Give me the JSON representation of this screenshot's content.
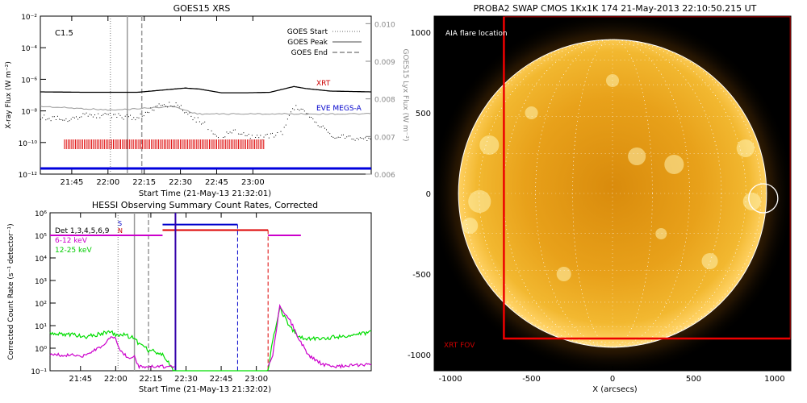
{
  "goes": {
    "title": "GOES15 XRS",
    "class_label": "C1.5",
    "ylabel": "X-ray Flux (W m⁻²)",
    "ylabel_right": "GOES15 Lyx Flux (W m⁻²)",
    "xlabel": "Start Time (21-May-13 21:32:01)",
    "legend": [
      "GOES Start",
      "GOES Peak",
      "GOES End"
    ],
    "instrument_labels": [
      "XRT",
      "EVE MEGS-A"
    ],
    "colors": {
      "xrt": "#cc0000",
      "eve": "#0000cc",
      "lyx": "#999999"
    }
  },
  "hessi": {
    "title": "HESSI Observing Summary Count Rates, Corrected",
    "ylabel": "Corrected Count Rate (s⁻¹ detector⁻¹)",
    "xlabel": "Start Time (21-May-13 21:32:02)",
    "legend": [
      {
        "text": "Det 1,3,4,5,6,9",
        "color": "#000000"
      },
      {
        "text": "6-12 keV",
        "color": "#cc00cc"
      },
      {
        "text": "12-25 keV",
        "color": "#00dd00"
      }
    ],
    "markers": [
      "S",
      "N"
    ]
  },
  "swap": {
    "title": "PROBA2 SWAP CMOS 1Kx1K 174 21-May-2013 22:10:50.215 UT",
    "flare_label": "AIA flare location",
    "fov_label": "XRT FOV",
    "xlabel": "X (arcsecs)"
  },
  "chart_data": [
    {
      "type": "line",
      "title": "GOES15 XRS",
      "x_ticks": [
        "21:45",
        "22:00",
        "22:15",
        "22:30",
        "22:45",
        "23:00"
      ],
      "x_range_minutes": [
        0,
        137
      ],
      "y_scale": "log",
      "y_ticks": [
        "10⁻¹²",
        "10⁻¹⁰",
        "10⁻⁸",
        "10⁻⁶",
        "10⁻⁴",
        "10⁻²"
      ],
      "y_ticks_right": [
        "0.006",
        "0.007",
        "0.008",
        "0.009",
        "0.010"
      ],
      "ylim": [
        1e-12,
        0.01
      ],
      "vlines": {
        "goes_start": "22:01",
        "goes_peak": "22:08",
        "goes_end": "22:14"
      },
      "series": [
        {
          "name": "XRT",
          "t": [
            0,
            20,
            40,
            60,
            66,
            75,
            85,
            95,
            105,
            110,
            120,
            137
          ],
          "y": [
            1.6e-07,
            1.5e-07,
            1.5e-07,
            2.8e-07,
            2.4e-07,
            1.4e-07,
            1.4e-07,
            1.5e-07,
            3.5e-07,
            2.6e-07,
            1.8e-07,
            1.6e-07
          ]
        },
        {
          "name": "EVE MEGS-A",
          "t": [
            0,
            137
          ],
          "y": [
            1e-12,
            1e-12
          ]
        }
      ],
      "xrs_short_t": [
        0,
        10,
        20,
        32,
        40,
        48,
        56,
        62,
        68,
        74,
        80,
        90,
        100,
        104,
        110,
        120,
        130
      ],
      "xrs_short_y": [
        4e-09,
        3e-09,
        6e-09,
        5e-09,
        4e-09,
        2e-08,
        3e-08,
        5e-09,
        1.5e-09,
        2.5e-10,
        5e-10,
        2e-10,
        4e-10,
        2e-08,
        1e-08,
        3e-10,
        2e-10
      ],
      "lyx_t": [
        0,
        30,
        55,
        65,
        137
      ],
      "lyx_y": [
        0.0078,
        0.0077,
        0.0078,
        0.0076,
        0.0076
      ],
      "eve_bar_minutes": [
        10,
        93
      ]
    },
    {
      "type": "line",
      "title": "HESSI Observing Summary Count Rates, Corrected",
      "x_ticks": [
        "21:45",
        "22:00",
        "22:15",
        "22:30",
        "22:45",
        "23:00"
      ],
      "y_scale": "log",
      "y_ticks": [
        "10⁻¹",
        "10⁰",
        "10¹",
        "10²",
        "10³",
        "10⁴",
        "10⁵",
        "10⁶"
      ],
      "ylim": [
        0.1,
        1000000.0
      ],
      "series": [
        {
          "name": "6-12 keV",
          "t": [
            0,
            6,
            14,
            22,
            26,
            28,
            30,
            32,
            34,
            36,
            38,
            40,
            42,
            44,
            46,
            48,
            50,
            53,
            93,
            95,
            98,
            102,
            106,
            110,
            116,
            120,
            137
          ],
          "y": [
            0.5,
            0.5,
            0.45,
            1.2,
            3.5,
            2.8,
            0.8,
            0.5,
            0.3,
            0.4,
            0.15,
            0.15,
            0.15,
            0.15,
            0.15,
            0.15,
            0.15,
            0.15,
            0.15,
            0.5,
            70,
            20,
            3,
            0.5,
            0.2,
            0.15,
            0.2
          ]
        },
        {
          "name": "12-25 keV",
          "t": [
            0,
            10,
            16,
            22,
            26,
            28,
            30,
            32,
            34,
            36,
            38,
            40,
            42,
            44,
            46,
            48,
            50,
            53,
            60,
            93,
            95,
            98,
            102,
            106,
            110,
            120,
            137
          ],
          "y": [
            4.5,
            4.0,
            3.2,
            4.5,
            5.5,
            4.0,
            3.5,
            4.0,
            3.2,
            3.0,
            1.5,
            1.2,
            0.8,
            0.8,
            0.6,
            0.5,
            0.3,
            0.1,
            0.1,
            0.1,
            2.5,
            60,
            10,
            3,
            2.5,
            3,
            5
          ]
        },
        {
          "name": "Det 1,3,4,5,6,9",
          "t": [
            54,
            55
          ],
          "y": [
            1000000.0,
            1000000.0
          ]
        }
      ],
      "level_6_12_after": [
        100000.0,
        100000.0
      ],
      "attenuator_segments": {
        "S": [
          48,
          80
        ],
        "N": [
          48,
          93
        ]
      }
    },
    {
      "type": "heatmap",
      "title": "PROBA2 SWAP CMOS 1Kx1K 174 21-May-2013 22:10:50.215 UT",
      "x_ticks": [
        -1000,
        -500,
        0,
        500,
        1000
      ],
      "y_ticks": [
        -1000,
        -500,
        0,
        500,
        1000
      ],
      "xlim": [
        -1100,
        1100
      ],
      "ylim": [
        -1100,
        1100
      ],
      "solar_radius_arcsec": 950,
      "flare_location": [
        930,
        -30
      ],
      "xrt_fov": {
        "x": [
          -670,
          1100
        ],
        "y": [
          -900,
          1100
        ]
      }
    }
  ]
}
